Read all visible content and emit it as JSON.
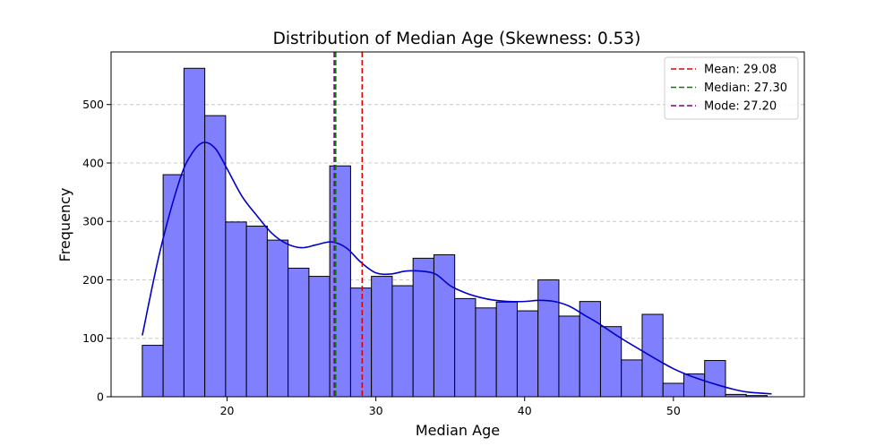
{
  "chart_data": {
    "type": "bar",
    "title": "Distribution of Median Age (Skewness: 0.53)",
    "xlabel": "Median Age",
    "ylabel": "Frequency",
    "xlim": [
      12.2,
      58.8
    ],
    "ylim": [
      0,
      590
    ],
    "xticks": [
      20,
      30,
      40,
      50
    ],
    "yticks": [
      0,
      100,
      200,
      300,
      400,
      500
    ],
    "grid": "y-dashed",
    "legend_position": "top-right",
    "bar_color": "#8080ff",
    "histogram": {
      "bin_start": 14.3,
      "bin_width": 1.4,
      "counts": [
        88,
        380,
        562,
        481,
        299,
        292,
        268,
        220,
        206,
        395,
        186,
        206,
        190,
        237,
        243,
        168,
        152,
        162,
        147,
        200,
        138,
        163,
        120,
        63,
        141,
        23,
        39,
        62,
        4,
        2
      ]
    },
    "kde": {
      "name": "KDE",
      "color": "#0000cc",
      "x": [
        14.3,
        15.5,
        16.8,
        17.6,
        18.4,
        19.2,
        20.0,
        21.0,
        22.0,
        23.0,
        24.0,
        25.0,
        26.0,
        27.0,
        28.0,
        29.0,
        30.0,
        31.0,
        32.0,
        33.0,
        34.0,
        35.0,
        36.0,
        37.0,
        38.0,
        39.0,
        40.0,
        41.0,
        42.0,
        43.0,
        44.0,
        45.0,
        46.0,
        47.0,
        48.0,
        49.0,
        50.0,
        51.0,
        52.0,
        53.0,
        54.0,
        55.0,
        56.6
      ],
      "y": [
        105,
        250,
        370,
        415,
        435,
        425,
        390,
        343,
        310,
        280,
        262,
        255,
        260,
        265,
        255,
        230,
        212,
        210,
        215,
        215,
        210,
        190,
        178,
        170,
        165,
        163,
        163,
        165,
        163,
        155,
        140,
        125,
        108,
        92,
        77,
        62,
        48,
        37,
        28,
        20,
        13,
        8,
        5
      ]
    },
    "reference_lines": [
      {
        "label": "Mean: 29.08",
        "value": 29.08,
        "color": "#dd0000"
      },
      {
        "label": "Median: 27.30",
        "value": 27.3,
        "color": "#008000"
      },
      {
        "label": "Mode: 27.20",
        "value": 27.2,
        "color": "#800080"
      }
    ]
  }
}
